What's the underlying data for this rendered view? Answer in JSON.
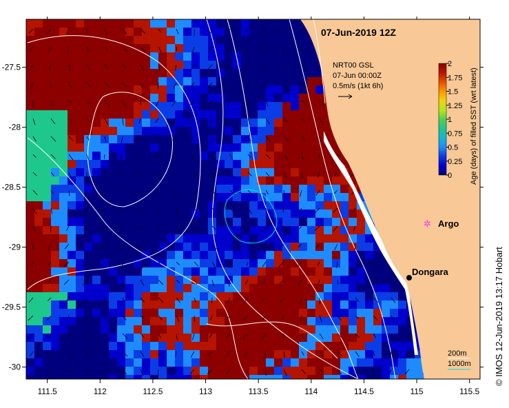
{
  "map": {
    "title": "07-Jun-2019 12Z",
    "model_label": "NRT00 GSL",
    "model_time": "07-Jun 00:00Z",
    "vector_scale": "0.5m/s (1kt 6h)",
    "credit": "© IMOS 12-Jun-2019 13:17 Hobart",
    "contour_200": "200m",
    "contour_1000": "1000m",
    "places": [
      {
        "name": "Dongara",
        "lon": 114.93,
        "lat": -29.25,
        "marker": "black-dot"
      },
      {
        "name": "Argo",
        "lon": 115.1,
        "lat": -28.9,
        "marker": "magenta-star"
      }
    ],
    "x_axis": {
      "min": 111.3,
      "max": 115.6,
      "ticks": [
        111.5,
        112,
        112.5,
        113,
        113.5,
        114,
        114.5,
        115,
        115.5
      ],
      "labels": [
        "111.5",
        "112",
        "112.5",
        "113",
        "113.5",
        "114",
        "114.5",
        "115",
        "115.5"
      ]
    },
    "y_axis": {
      "min": -30.1,
      "max": -27.1,
      "ticks": [
        -27.5,
        -28,
        -28.5,
        -29,
        -29.5,
        -30
      ],
      "labels": [
        "-27.5",
        "-28",
        "-28.5",
        "-29",
        "-29.5",
        "-30"
      ]
    },
    "colorbar": {
      "label": "Age (days) of filled SST (wrt latest)",
      "min": 0,
      "max": 2,
      "ticks": [
        0,
        0.25,
        0.5,
        0.75,
        1,
        1.25,
        1.5,
        1.75,
        2
      ],
      "tick_labels": [
        "0",
        "0.25",
        "0.5",
        "0.75",
        "1",
        "1.25",
        "1.5",
        "1.75",
        "2"
      ],
      "colors": [
        "#00007f",
        "#0000cc",
        "#0a3de6",
        "#1e8cff",
        "#12b4d6",
        "#1ec88c",
        "#50d050",
        "#b4e61e",
        "#f0d20a",
        "#ff9600",
        "#e65000",
        "#b41400",
        "#8c0000"
      ]
    },
    "land_color": "#f8c896",
    "nodata_color": "#ffffff"
  }
}
